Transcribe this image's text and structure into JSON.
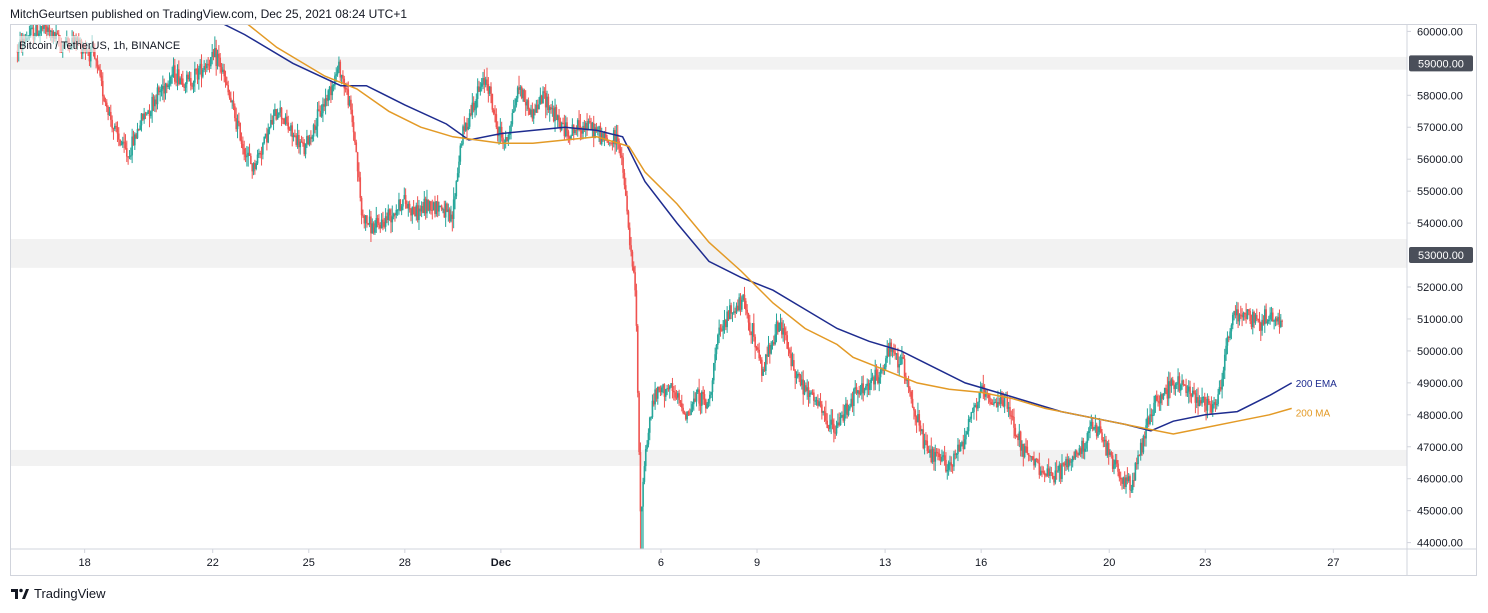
{
  "header": {
    "published": "MitchGeurtsen published on TradingView.com, Dec 25, 2021 08:24 UTC+1"
  },
  "footer": {
    "brand": "TradingView",
    "logo_icon": "tradingview-logo-icon"
  },
  "chart_data": {
    "type": "candlestick",
    "symbol": "Bitcoin / TetherUS, 1h, BINANCE",
    "ylim": [
      43800,
      60200
    ],
    "y_ticks": [
      44000,
      45000,
      46000,
      47000,
      48000,
      49000,
      50000,
      51000,
      52000,
      53000,
      54000,
      55000,
      56000,
      57000,
      58000,
      59000,
      60000
    ],
    "y_highlight_labels": [
      {
        "label": "59000.00",
        "value": 59000
      },
      {
        "label": "53000.00",
        "value": 53000
      }
    ],
    "x_ticks": [
      {
        "label": "18",
        "day": 18
      },
      {
        "label": "22",
        "day": 22
      },
      {
        "label": "25",
        "day": 25
      },
      {
        "label": "28",
        "day": 28
      },
      {
        "label": "Dec",
        "day": 31,
        "bold": true
      },
      {
        "label": "6",
        "day": 36
      },
      {
        "label": "9",
        "day": 39
      },
      {
        "label": "13",
        "day": 43
      },
      {
        "label": "16",
        "day": 46
      },
      {
        "label": "20",
        "day": 50
      },
      {
        "label": "23",
        "day": 53
      },
      {
        "label": "27",
        "day": 57
      }
    ],
    "xlim": [
      15.7,
      59.3
    ],
    "zones": [
      {
        "from": 58800,
        "to": 59200
      },
      {
        "from": 52600,
        "to": 53500
      },
      {
        "from": 46400,
        "to": 46900
      }
    ],
    "price_path": [
      [
        15.9,
        59400
      ],
      [
        16.3,
        59900
      ],
      [
        16.8,
        60100
      ],
      [
        17.3,
        59600
      ],
      [
        17.8,
        59700
      ],
      [
        18.3,
        59300
      ],
      [
        18.7,
        57800
      ],
      [
        19.0,
        56800
      ],
      [
        19.4,
        56100
      ],
      [
        19.8,
        57200
      ],
      [
        20.3,
        58000
      ],
      [
        20.8,
        58700
      ],
      [
        21.3,
        58400
      ],
      [
        21.8,
        59000
      ],
      [
        22.2,
        59200
      ],
      [
        22.6,
        57800
      ],
      [
        23.0,
        56400
      ],
      [
        23.3,
        55700
      ],
      [
        23.7,
        56700
      ],
      [
        24.1,
        57600
      ],
      [
        24.5,
        56800
      ],
      [
        24.9,
        56300
      ],
      [
        25.3,
        57200
      ],
      [
        25.7,
        58200
      ],
      [
        26.0,
        58900
      ],
      [
        26.3,
        57800
      ],
      [
        26.5,
        56500
      ],
      [
        26.7,
        54200
      ],
      [
        27.1,
        53800
      ],
      [
        27.6,
        54300
      ],
      [
        28.0,
        54700
      ],
      [
        28.4,
        54300
      ],
      [
        28.8,
        54600
      ],
      [
        29.2,
        54500
      ],
      [
        29.5,
        54000
      ],
      [
        29.8,
        56600
      ],
      [
        30.2,
        57800
      ],
      [
        30.6,
        58600
      ],
      [
        30.9,
        57000
      ],
      [
        31.2,
        56500
      ],
      [
        31.6,
        58300
      ],
      [
        32.0,
        57400
      ],
      [
        32.4,
        58000
      ],
      [
        32.8,
        57200
      ],
      [
        33.2,
        56800
      ],
      [
        33.6,
        57100
      ],
      [
        34.0,
        56900
      ],
      [
        34.4,
        56500
      ],
      [
        34.7,
        56700
      ],
      [
        34.9,
        55200
      ],
      [
        35.1,
        53000
      ],
      [
        35.25,
        51800
      ],
      [
        35.4,
        44800
      ],
      [
        35.55,
        46800
      ],
      [
        35.8,
        48500
      ],
      [
        36.2,
        48900
      ],
      [
        36.6,
        48400
      ],
      [
        36.9,
        48000
      ],
      [
        37.2,
        48700
      ],
      [
        37.5,
        48200
      ],
      [
        37.8,
        50300
      ],
      [
        38.2,
        51200
      ],
      [
        38.6,
        51500
      ],
      [
        38.9,
        50600
      ],
      [
        39.2,
        49300
      ],
      [
        39.5,
        50400
      ],
      [
        39.8,
        50800
      ],
      [
        40.1,
        49700
      ],
      [
        40.5,
        48800
      ],
      [
        40.9,
        48400
      ],
      [
        41.2,
        47800
      ],
      [
        41.5,
        47500
      ],
      [
        41.8,
        48200
      ],
      [
        42.1,
        48600
      ],
      [
        42.5,
        48900
      ],
      [
        42.9,
        49300
      ],
      [
        43.2,
        50000
      ],
      [
        43.6,
        49600
      ],
      [
        44.0,
        48000
      ],
      [
        44.3,
        46900
      ],
      [
        44.7,
        46600
      ],
      [
        45.1,
        46400
      ],
      [
        45.5,
        47300
      ],
      [
        45.8,
        48200
      ],
      [
        46.1,
        48700
      ],
      [
        46.4,
        48200
      ],
      [
        46.7,
        48600
      ],
      [
        47.0,
        47900
      ],
      [
        47.3,
        47000
      ],
      [
        47.6,
        46500
      ],
      [
        47.9,
        46400
      ],
      [
        48.2,
        46000
      ],
      [
        48.5,
        46200
      ],
      [
        48.8,
        46600
      ],
      [
        49.1,
        46800
      ],
      [
        49.5,
        47600
      ],
      [
        49.8,
        47300
      ],
      [
        50.1,
        46600
      ],
      [
        50.4,
        46000
      ],
      [
        50.7,
        45800
      ],
      [
        51.0,
        46800
      ],
      [
        51.3,
        48000
      ],
      [
        51.7,
        48700
      ],
      [
        52.1,
        49000
      ],
      [
        52.5,
        48800
      ],
      [
        52.9,
        48500
      ],
      [
        53.2,
        48300
      ],
      [
        53.5,
        48700
      ],
      [
        53.7,
        50200
      ],
      [
        53.9,
        51000
      ],
      [
        54.3,
        51200
      ],
      [
        54.7,
        50900
      ],
      [
        55.1,
        51100
      ],
      [
        55.4,
        50900
      ]
    ],
    "series": [
      {
        "name": "200 EMA",
        "color": "#1e2c8f",
        "points": [
          [
            16.0,
            60600
          ],
          [
            18.0,
            60700
          ],
          [
            20.0,
            60600
          ],
          [
            22.0,
            60400
          ],
          [
            23.0,
            59900
          ],
          [
            24.5,
            59000
          ],
          [
            26.0,
            58300
          ],
          [
            26.8,
            58300
          ],
          [
            28.0,
            57700
          ],
          [
            29.3,
            57100
          ],
          [
            30.0,
            56600
          ],
          [
            31.0,
            56800
          ],
          [
            32.0,
            56900
          ],
          [
            33.0,
            57000
          ],
          [
            34.0,
            56900
          ],
          [
            34.8,
            56700
          ],
          [
            35.5,
            55300
          ],
          [
            36.5,
            54000
          ],
          [
            37.5,
            52800
          ],
          [
            38.5,
            52300
          ],
          [
            39.5,
            51900
          ],
          [
            40.5,
            51300
          ],
          [
            41.5,
            50700
          ],
          [
            42.5,
            50300
          ],
          [
            43.5,
            50000
          ],
          [
            44.5,
            49500
          ],
          [
            45.5,
            49000
          ],
          [
            46.5,
            48700
          ],
          [
            47.5,
            48400
          ],
          [
            48.5,
            48100
          ],
          [
            49.5,
            47900
          ],
          [
            50.5,
            47700
          ],
          [
            51.3,
            47500
          ],
          [
            52.0,
            47800
          ],
          [
            53.0,
            48000
          ],
          [
            54.0,
            48100
          ],
          [
            55.0,
            48600
          ],
          [
            55.7,
            49000
          ]
        ]
      },
      {
        "name": "200 MA",
        "color": "#e39a26",
        "points": [
          [
            23.0,
            60300
          ],
          [
            24.0,
            59500
          ],
          [
            25.5,
            58600
          ],
          [
            26.5,
            58200
          ],
          [
            27.5,
            57500
          ],
          [
            28.5,
            57000
          ],
          [
            29.5,
            56700
          ],
          [
            31.0,
            56500
          ],
          [
            32.0,
            56500
          ],
          [
            33.0,
            56600
          ],
          [
            34.0,
            56700
          ],
          [
            35.0,
            56400
          ],
          [
            35.5,
            55600
          ],
          [
            36.5,
            54600
          ],
          [
            37.5,
            53400
          ],
          [
            38.5,
            52500
          ],
          [
            39.5,
            51500
          ],
          [
            40.5,
            50700
          ],
          [
            41.5,
            50200
          ],
          [
            42.0,
            49800
          ],
          [
            43.0,
            49400
          ],
          [
            44.0,
            49000
          ],
          [
            45.0,
            48800
          ],
          [
            46.0,
            48700
          ],
          [
            47.0,
            48500
          ],
          [
            48.0,
            48200
          ],
          [
            49.0,
            48000
          ],
          [
            50.0,
            47800
          ],
          [
            51.0,
            47600
          ],
          [
            52.0,
            47400
          ],
          [
            53.0,
            47600
          ],
          [
            54.0,
            47800
          ],
          [
            55.0,
            48000
          ],
          [
            55.7,
            48200
          ]
        ]
      }
    ],
    "series_labels": [
      {
        "text": "200 EMA",
        "color": "#1e2c8f"
      },
      {
        "text": "200 MA",
        "color": "#e39a26"
      }
    ],
    "colors": {
      "up": "#26a69a",
      "down": "#ef5350",
      "zone": "#f2f2f2",
      "grid": "#ffffff"
    }
  }
}
